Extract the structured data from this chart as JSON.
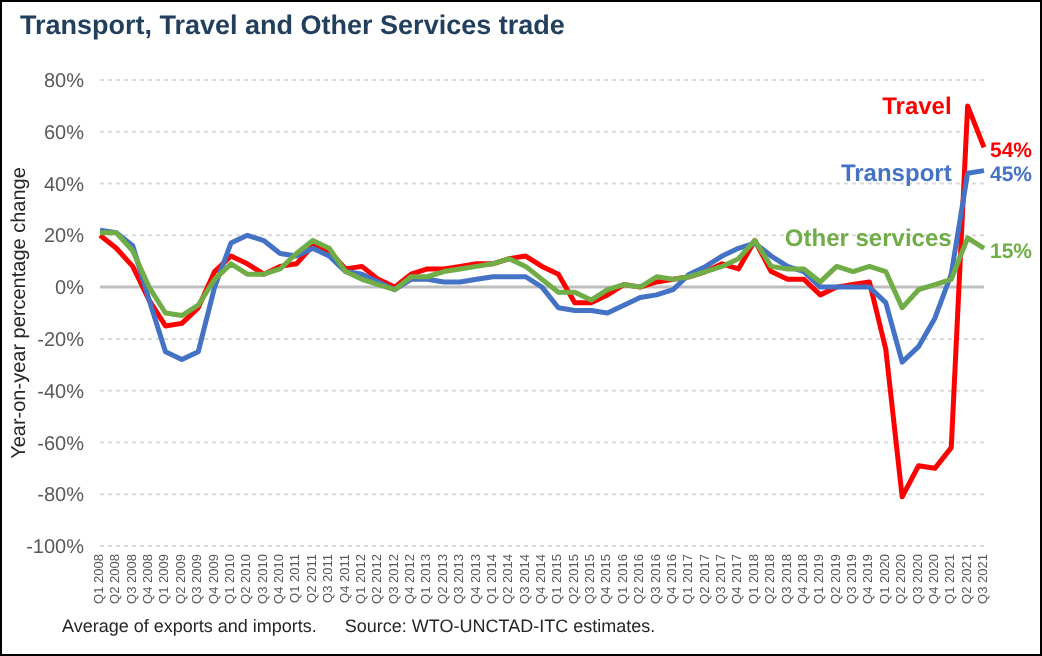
{
  "chart_data": {
    "type": "line",
    "title": "Transport, Travel and Other Services trade",
    "ylabel": "Year-on-year percentage change",
    "categories": [
      "Q1 2008",
      "Q2 2008",
      "Q3 2008",
      "Q4 2008",
      "Q1 2009",
      "Q2 2009",
      "Q3 2009",
      "Q4 2009",
      "Q1 2010",
      "Q2 2010",
      "Q3 2010",
      "Q4 2010",
      "Q1 2011",
      "Q2 2011",
      "Q3 2011",
      "Q4 2011",
      "Q1 2012",
      "Q2 2012",
      "Q3 2012",
      "Q4 2012",
      "Q1 2013",
      "Q2 2013",
      "Q3 2013",
      "Q4 2013",
      "Q1 2014",
      "Q2 2014",
      "Q3 2014",
      "Q4 2014",
      "Q1 2015",
      "Q2 2015",
      "Q3 2015",
      "Q4 2015",
      "Q1 2016",
      "Q2 2016",
      "Q3 2016",
      "Q4 2016",
      "Q1 2017",
      "Q2 2017",
      "Q3 2017",
      "Q4 2017",
      "Q1 2018",
      "Q2 2018",
      "Q3 2018",
      "Q4 2018",
      "Q1 2019",
      "Q2 2019",
      "Q3 2019",
      "Q4 2019",
      "Q1 2020",
      "Q2 2020",
      "Q3 2020",
      "Q4 2020",
      "Q1 2021",
      "Q2 2021",
      "Q3 2021"
    ],
    "series": [
      {
        "name": "Travel",
        "color": "#ff0000",
        "values": [
          20,
          15,
          8,
          -5,
          -15,
          -14,
          -8,
          6,
          12,
          9,
          5,
          8,
          9,
          16,
          14,
          7,
          8,
          3,
          0,
          5,
          7,
          7,
          8,
          9,
          9,
          11,
          12,
          8,
          5,
          -6,
          -6,
          -3,
          1,
          0,
          2,
          3,
          4,
          6,
          9,
          7,
          18,
          6,
          3,
          3,
          -3,
          0,
          1,
          2,
          -24,
          -81,
          -69,
          -70,
          -62,
          70,
          54
        ],
        "value_labels": [
          null,
          null,
          null,
          null,
          null,
          null,
          null,
          null,
          null,
          null,
          null,
          null,
          null,
          null,
          null,
          null,
          null,
          null,
          null,
          null,
          null,
          null,
          null,
          null,
          null,
          null,
          null,
          null,
          null,
          null,
          null,
          null,
          null,
          null,
          null,
          null,
          null,
          null,
          null,
          null,
          null,
          null,
          null,
          null,
          null,
          null,
          null,
          null,
          null,
          null,
          null,
          null,
          null,
          null,
          "54%"
        ]
      },
      {
        "name": "Transport",
        "color": "#4472c4",
        "values": [
          22,
          21,
          16,
          -5,
          -25,
          -28,
          -25,
          0,
          17,
          20,
          18,
          13,
          12,
          15,
          12,
          6,
          5,
          2,
          -1,
          3,
          3,
          2,
          2,
          3,
          4,
          4,
          4,
          0,
          -8,
          -9,
          -9,
          -10,
          -7,
          -4,
          -3,
          -1,
          5,
          8,
          12,
          15,
          17,
          12,
          8,
          6,
          0,
          0,
          0,
          0,
          -6,
          -29,
          -23,
          -12,
          5,
          44,
          45
        ],
        "value_labels": [
          null,
          null,
          null,
          null,
          null,
          null,
          null,
          null,
          null,
          null,
          null,
          null,
          null,
          null,
          null,
          null,
          null,
          null,
          null,
          null,
          null,
          null,
          null,
          null,
          null,
          null,
          null,
          null,
          null,
          null,
          null,
          null,
          null,
          null,
          null,
          null,
          null,
          null,
          null,
          null,
          null,
          null,
          null,
          null,
          null,
          null,
          null,
          null,
          null,
          null,
          null,
          null,
          null,
          null,
          "45%"
        ]
      },
      {
        "name": "Other services",
        "color": "#70ad47",
        "values": [
          21,
          21,
          14,
          0,
          -10,
          -11,
          -7,
          3,
          9,
          5,
          5,
          7,
          13,
          18,
          15,
          6,
          3,
          1,
          -1,
          4,
          4,
          6,
          7,
          8,
          9,
          11,
          8,
          3,
          -2,
          -2,
          -5,
          -1,
          1,
          0,
          4,
          3,
          4,
          6,
          8,
          11,
          18,
          8,
          7,
          7,
          2,
          8,
          6,
          8,
          6,
          -8,
          -1,
          1,
          3,
          19,
          15
        ],
        "value_labels": [
          null,
          null,
          null,
          null,
          null,
          null,
          null,
          null,
          null,
          null,
          null,
          null,
          null,
          null,
          null,
          null,
          null,
          null,
          null,
          null,
          null,
          null,
          null,
          null,
          null,
          null,
          null,
          null,
          null,
          null,
          null,
          null,
          null,
          null,
          null,
          null,
          null,
          null,
          null,
          null,
          null,
          null,
          null,
          null,
          null,
          null,
          null,
          null,
          null,
          null,
          null,
          null,
          null,
          null,
          "15%"
        ]
      }
    ],
    "ylim": [
      -100,
      80
    ],
    "yticks": [
      {
        "value": -100,
        "label": "-100%"
      },
      {
        "value": -80,
        "label": "-80%"
      },
      {
        "value": -60,
        "label": "-60%"
      },
      {
        "value": -40,
        "label": "-40%"
      },
      {
        "value": -20,
        "label": "-20%"
      },
      {
        "value": 0,
        "label": "0%"
      },
      {
        "value": 20,
        "label": "20%"
      },
      {
        "value": 40,
        "label": "40%"
      },
      {
        "value": 60,
        "label": "60%"
      },
      {
        "value": 80,
        "label": "80%"
      }
    ],
    "grid": "y",
    "legend": false,
    "marker": "none",
    "line_style": "solid",
    "ref_lines": [
      {
        "axis": "y",
        "value": 0,
        "label": null,
        "color": "#bfbfbf"
      }
    ],
    "annotations": [
      "Average of exports and imports.",
      "Source: WTO-UNCTAD-ITC estimates."
    ]
  }
}
